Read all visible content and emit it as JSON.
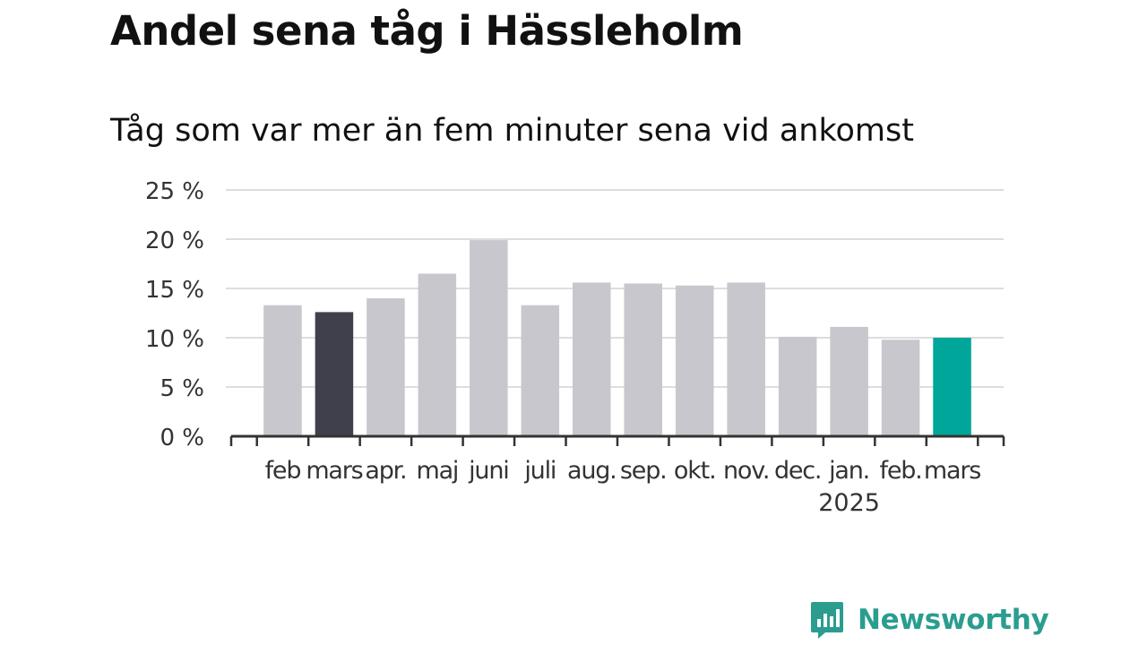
{
  "header": {
    "title": "Andel sena tåg i Hässleholm",
    "subtitle": "Tåg som var mer än fem minuter sena vid ankomst"
  },
  "brand": {
    "name": "Newsworthy",
    "icon": "bar-chart-speech-bubble-icon",
    "color": "#2a9d8f"
  },
  "chart_data": {
    "type": "bar",
    "categories": [
      "feb",
      "mars",
      "apr.",
      "maj",
      "juni",
      "juli",
      "aug.",
      "sep.",
      "okt.",
      "nov.",
      "dec.",
      "jan.",
      "feb.",
      "mars"
    ],
    "values": [
      13.3,
      12.6,
      14.0,
      16.5,
      19.9,
      13.3,
      15.6,
      15.5,
      15.3,
      15.6,
      10.1,
      11.1,
      9.8,
      10.0
    ],
    "year_labels": [
      {
        "index": 11,
        "label": "2025"
      }
    ],
    "ylim": [
      0,
      25
    ],
    "yticks": [
      0,
      5,
      10,
      15,
      20,
      25
    ],
    "ytick_labels": [
      "0 %",
      "5 %",
      "10 %",
      "15 %",
      "20 %",
      "25 %"
    ],
    "xlabel": "",
    "ylabel": "",
    "grid": true,
    "legend": "none",
    "colors": {
      "default": "#c8c7ce",
      "comparison": "#403f4c",
      "latest": "#00a699",
      "grid": "#dddddd",
      "axis": "#333333"
    },
    "highlight": {
      "comparison_index": 1,
      "latest_index": 13
    }
  }
}
